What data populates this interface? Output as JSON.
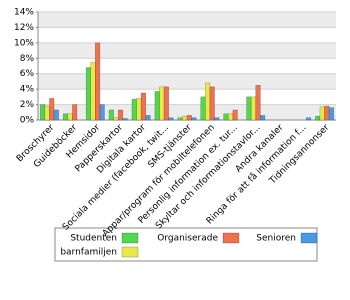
{
  "chart_data": {
    "type": "bar",
    "categories": [
      "Broschyrer",
      "Guideböcker",
      "Hemsidor",
      "Papperskartor",
      "Digitala kartor",
      "Sociala medier (facebook, twit...",
      "SMS-tjänster",
      "Appar/program för mobiltelefonen",
      "Personlig information ex. tur...",
      "Skyltar och informationstavlor...",
      "Andra kanaler",
      "Ringa för att få information f...",
      "Tidningsannonser"
    ],
    "series": [
      {
        "name": "Studenten",
        "color": "#4fd84f",
        "values": [
          2.0,
          0.8,
          6.8,
          1.3,
          2.7,
          3.7,
          0.3,
          3.0,
          0.8,
          3.0,
          0,
          0,
          0.5
        ]
      },
      {
        "name": "barnfamiljen",
        "color": "#e8e84a",
        "values": [
          1.8,
          0.8,
          7.5,
          0.3,
          2.8,
          4.3,
          0.5,
          4.8,
          0.8,
          3.0,
          0,
          0,
          1.7
        ]
      },
      {
        "name": "Organiserade",
        "color": "#f07050",
        "values": [
          2.8,
          2.0,
          10.0,
          1.3,
          3.5,
          4.3,
          0.6,
          4.3,
          1.3,
          4.5,
          0,
          0,
          1.8
        ]
      },
      {
        "name": "Senioren",
        "color": "#4a9ae8",
        "values": [
          1.3,
          0,
          2.0,
          0.2,
          0.6,
          0.3,
          0.3,
          0.3,
          0,
          0.6,
          0,
          0.3,
          1.6
        ]
      }
    ],
    "ylim": [
      0,
      14
    ],
    "yticks": [
      {
        "value": 0,
        "label": "0%"
      },
      {
        "value": 2,
        "label": "2%"
      },
      {
        "value": 4,
        "label": "4%"
      },
      {
        "value": 6,
        "label": "6%"
      },
      {
        "value": 8,
        "label": "8%"
      },
      {
        "value": 10,
        "label": "10%"
      },
      {
        "value": 12,
        "label": "12%"
      },
      {
        "value": 14,
        "label": "14%"
      }
    ],
    "grid": true
  }
}
